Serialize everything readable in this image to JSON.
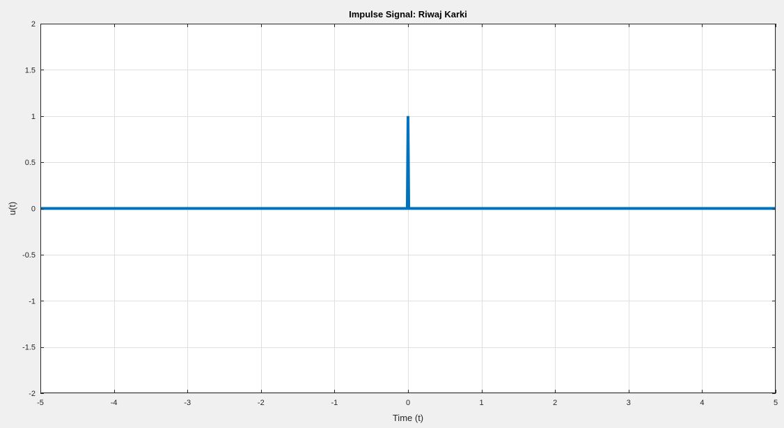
{
  "chart_data": {
    "type": "line",
    "title": "Impulse Signal: Riwaj Karki",
    "xlabel": "Time (t)",
    "ylabel": "u(t)",
    "xlim": [
      -5,
      5
    ],
    "ylim": [
      -2,
      2
    ],
    "xticks": [
      -5,
      -4,
      -3,
      -2,
      -1,
      0,
      1,
      2,
      3,
      4,
      5
    ],
    "yticks": [
      -2,
      -1.5,
      -1,
      -0.5,
      0,
      0.5,
      1,
      1.5,
      2
    ],
    "xtick_labels": [
      "-5",
      "-4",
      "-3",
      "-2",
      "-1",
      "0",
      "1",
      "2",
      "3",
      "4",
      "5"
    ],
    "ytick_labels": [
      "-2",
      "-1.5",
      "-1",
      "-0.5",
      "0",
      "0.5",
      "1",
      "1.5",
      "2"
    ],
    "grid": true,
    "series": [
      {
        "color": "#0072bd",
        "x": [
          -5,
          -0.01,
          0,
          0.01,
          5
        ],
        "y": [
          0,
          0,
          1,
          0,
          0
        ]
      }
    ]
  },
  "colors": {
    "figure_background": "#f0f0f0",
    "axes_background": "#ffffff",
    "grid": "#dfdfdf",
    "axis": "#262626",
    "line": "#0072bd"
  }
}
